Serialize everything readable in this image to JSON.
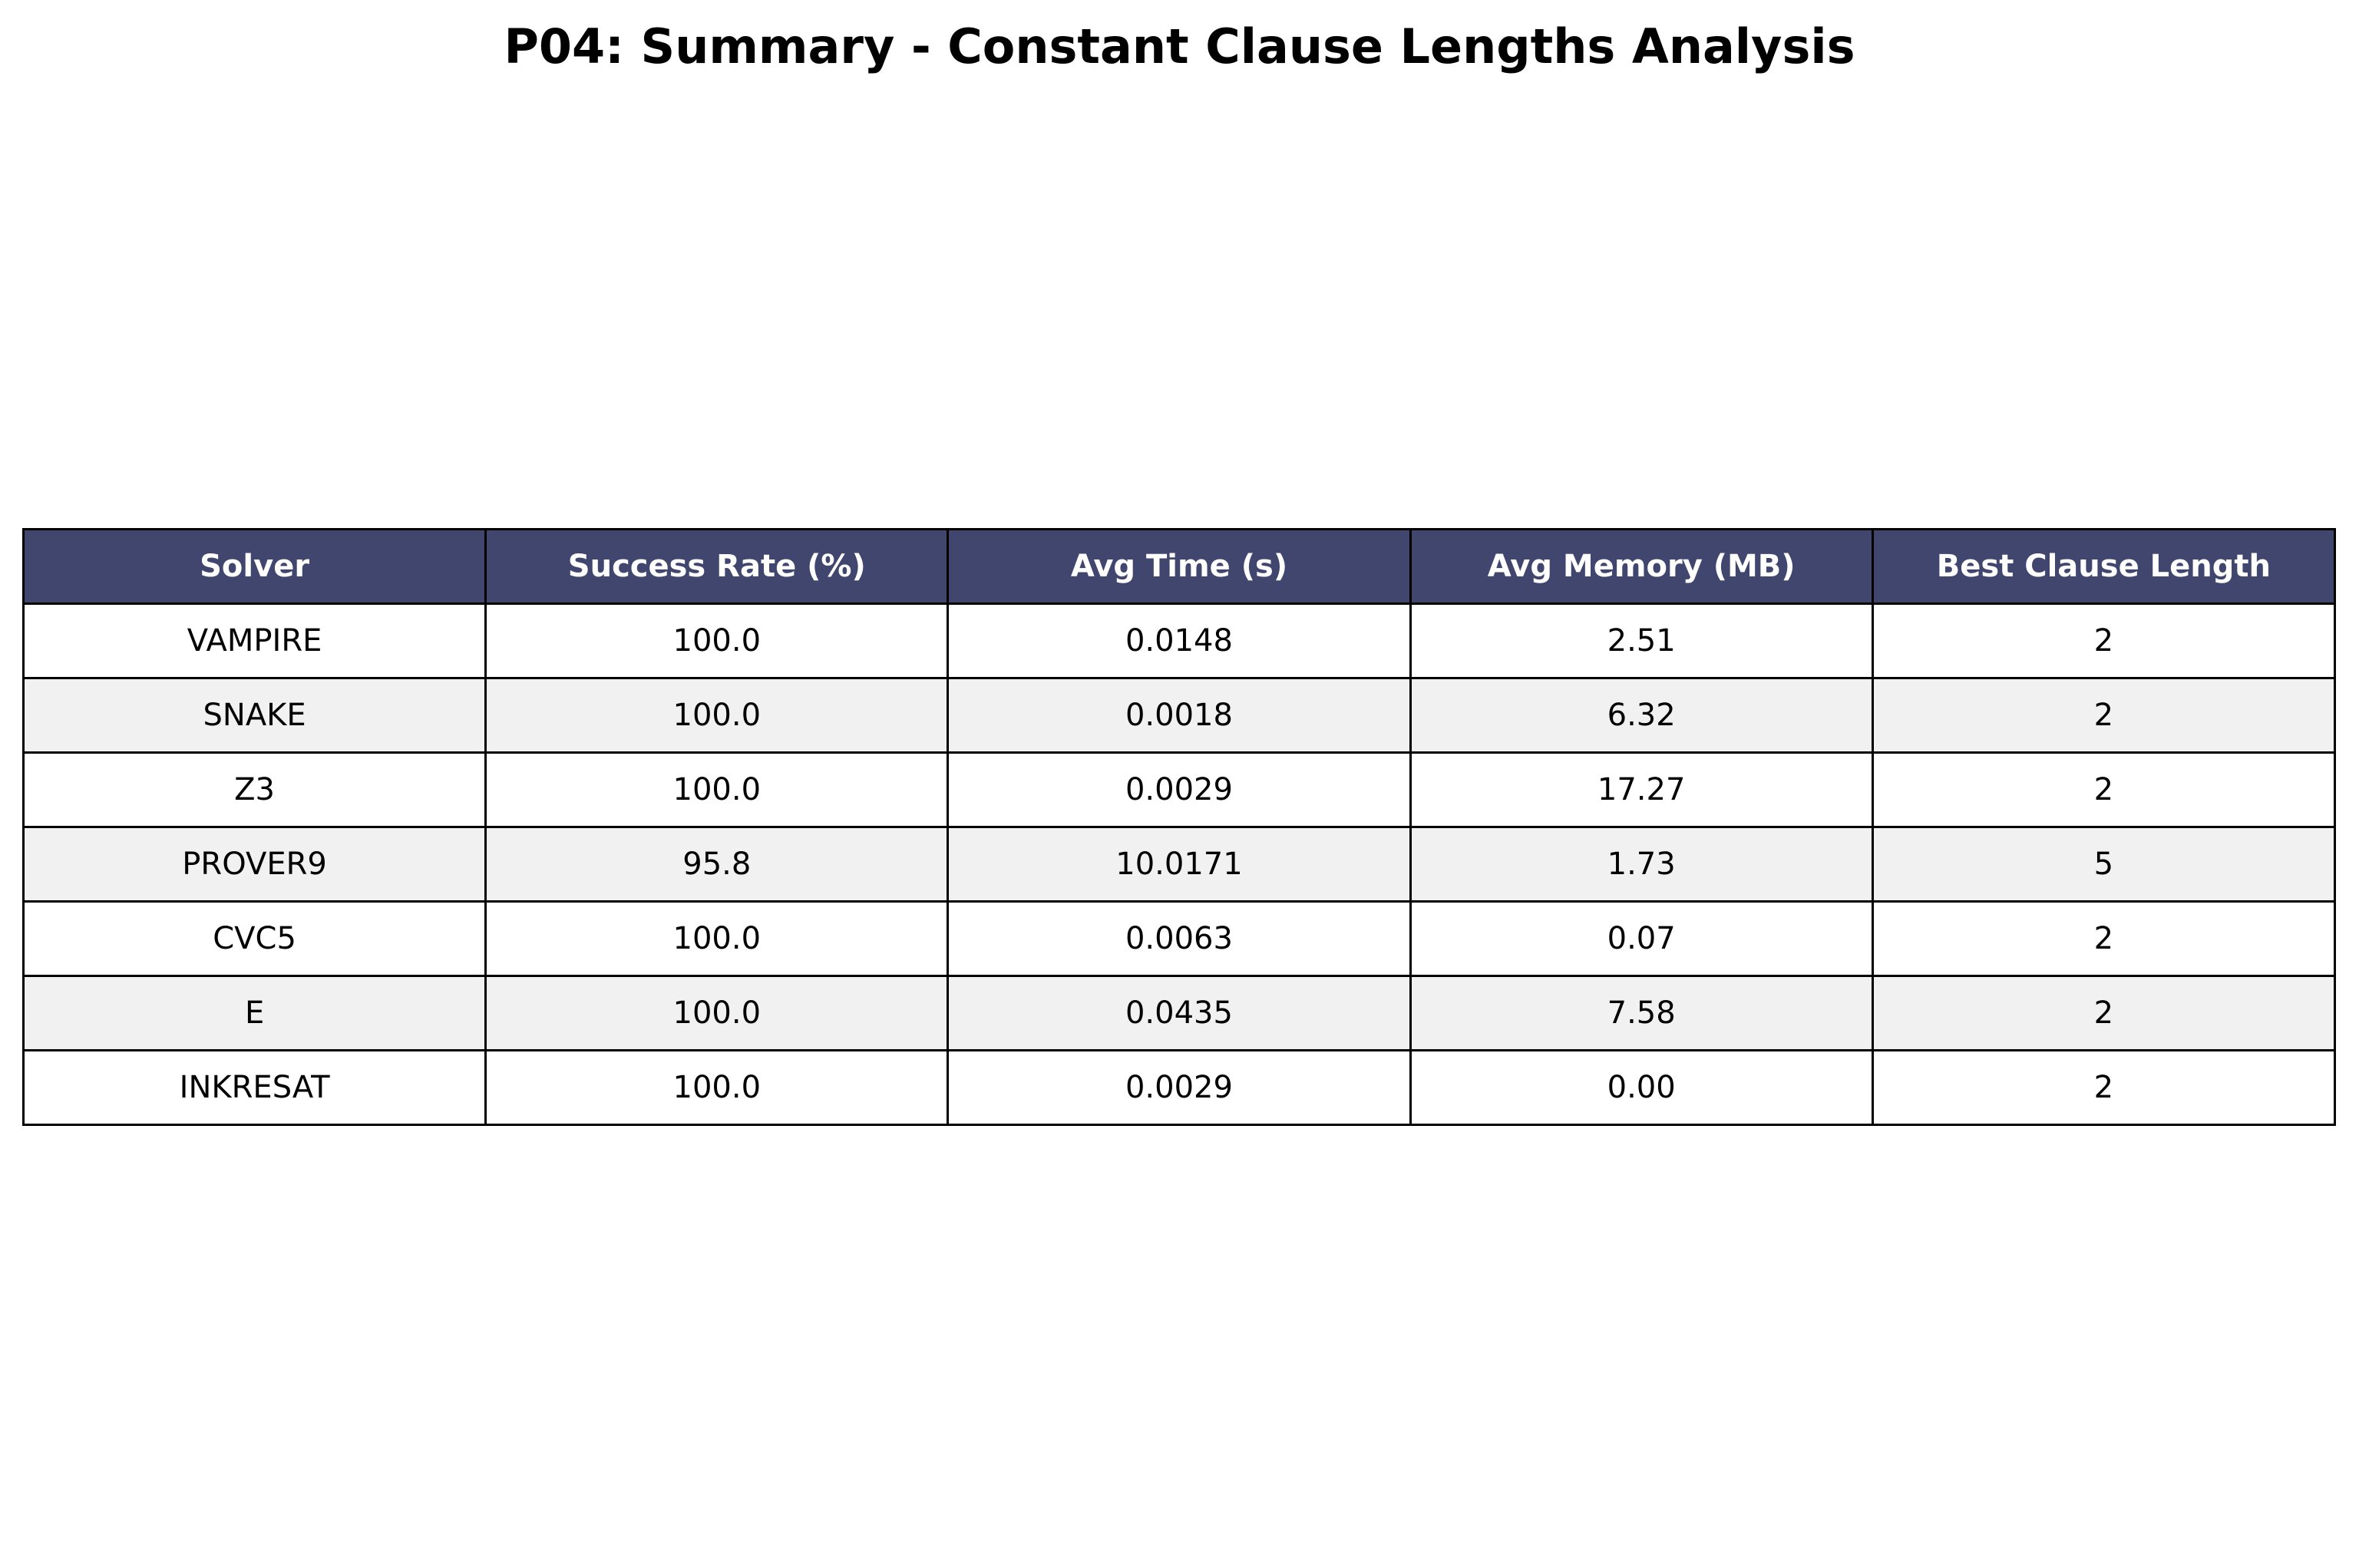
{
  "colors": {
    "header_bg": "#40466e",
    "header_text": "#ffffff",
    "row_alt_bg": "#f1f1f2",
    "row_bg": "#ffffff",
    "border": "#000000"
  },
  "chart_data": {
    "type": "table",
    "title": "P04: Summary - Constant Clause Lengths Analysis",
    "columns": [
      "Solver",
      "Success Rate (%)",
      "Avg Time (s)",
      "Avg Memory (MB)",
      "Best Clause Length"
    ],
    "rows": [
      [
        "VAMPIRE",
        "100.0",
        "0.0148",
        "2.51",
        "2"
      ],
      [
        "SNAKE",
        "100.0",
        "0.0018",
        "6.32",
        "2"
      ],
      [
        "Z3",
        "100.0",
        "0.0029",
        "17.27",
        "2"
      ],
      [
        "PROVER9",
        "95.8",
        "10.0171",
        "1.73",
        "5"
      ],
      [
        "CVC5",
        "100.0",
        "0.0063",
        "0.07",
        "2"
      ],
      [
        "E",
        "100.0",
        "0.0435",
        "7.58",
        "2"
      ],
      [
        "INKRESAT",
        "100.0",
        "0.0029",
        "0.00",
        "2"
      ]
    ]
  }
}
